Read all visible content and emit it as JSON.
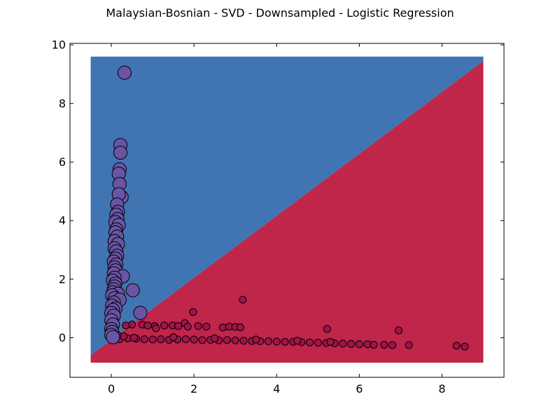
{
  "chart_data": {
    "type": "scatter",
    "title": "Malaysian-Bosnian - SVD - Downsampled - Logistic Regression",
    "xlabel": "",
    "ylabel": "",
    "xlim": [
      -1,
      9.5
    ],
    "ylim": [
      -1.35,
      10.05
    ],
    "xticks": [
      0,
      2,
      4,
      6,
      8
    ],
    "yticks": [
      0,
      2,
      4,
      6,
      8,
      10
    ],
    "grid": false,
    "legend": "none",
    "decision_regions": {
      "extent_x": [
        -0.5,
        9.0
      ],
      "extent_y": [
        -0.85,
        9.6
      ],
      "boundary": [
        [
          -0.5,
          -0.6
        ],
        [
          9.0,
          9.45
        ]
      ],
      "upper_region_color": "#4174b3",
      "lower_region_color": "#c0254a"
    },
    "series": [
      {
        "class": "upper",
        "color": "#6a54a6",
        "marker_size": "large",
        "points": [
          [
            0.32,
            9.05
          ],
          [
            0.22,
            6.58
          ],
          [
            0.22,
            6.32
          ],
          [
            0.2,
            5.75
          ],
          [
            0.18,
            5.6
          ],
          [
            0.2,
            5.25
          ],
          [
            0.25,
            4.8
          ],
          [
            0.18,
            4.9
          ],
          [
            0.14,
            4.55
          ],
          [
            0.16,
            4.3
          ],
          [
            0.12,
            4.2
          ],
          [
            0.15,
            4.05
          ],
          [
            0.1,
            3.95
          ],
          [
            0.18,
            3.85
          ],
          [
            0.12,
            3.7
          ],
          [
            0.1,
            3.6
          ],
          [
            0.14,
            3.45
          ],
          [
            0.08,
            3.3
          ],
          [
            0.16,
            3.2
          ],
          [
            0.08,
            3.05
          ],
          [
            0.12,
            2.95
          ],
          [
            0.14,
            2.8
          ],
          [
            0.1,
            2.7
          ],
          [
            0.06,
            2.6
          ],
          [
            0.12,
            2.5
          ],
          [
            0.08,
            2.4
          ],
          [
            0.1,
            2.3
          ],
          [
            0.06,
            2.2
          ],
          [
            0.28,
            2.1
          ],
          [
            0.08,
            2.05
          ],
          [
            0.04,
            1.95
          ],
          [
            0.1,
            1.85
          ],
          [
            0.08,
            1.75
          ],
          [
            0.06,
            1.65
          ],
          [
            0.52,
            1.62
          ],
          [
            0.04,
            1.55
          ],
          [
            0.16,
            1.5
          ],
          [
            0.02,
            1.45
          ],
          [
            0.08,
            1.35
          ],
          [
            0.2,
            1.3
          ],
          [
            0.06,
            1.2
          ],
          [
            0.02,
            1.1
          ],
          [
            0.1,
            1.0
          ],
          [
            0.04,
            0.95
          ],
          [
            0.0,
            0.85
          ],
          [
            0.7,
            0.85
          ],
          [
            0.06,
            0.75
          ],
          [
            0.0,
            0.6
          ],
          [
            0.04,
            0.45
          ],
          [
            0.0,
            0.3
          ],
          [
            0.02,
            0.2
          ],
          [
            0.0,
            0.1
          ],
          [
            0.04,
            0.02
          ]
        ]
      },
      {
        "class": "lower",
        "color": "#a0144a",
        "marker_size": "small",
        "points": [
          [
            1.98,
            0.88
          ],
          [
            3.18,
            1.3
          ],
          [
            5.22,
            0.3
          ],
          [
            6.95,
            0.25
          ],
          [
            7.2,
            -0.25
          ],
          [
            8.35,
            -0.27
          ],
          [
            8.55,
            -0.3
          ],
          [
            1.78,
            0.5
          ],
          [
            0.5,
            0.45
          ],
          [
            0.75,
            0.45
          ],
          [
            0.88,
            0.42
          ],
          [
            1.05,
            0.4
          ],
          [
            1.28,
            0.42
          ],
          [
            1.48,
            0.42
          ],
          [
            1.62,
            0.4
          ],
          [
            1.85,
            0.38
          ],
          [
            2.1,
            0.4
          ],
          [
            2.3,
            0.38
          ],
          [
            2.7,
            0.35
          ],
          [
            2.85,
            0.38
          ],
          [
            3.0,
            0.37
          ],
          [
            3.12,
            0.36
          ],
          [
            0.35,
            0.42
          ],
          [
            1.08,
            0.32
          ],
          [
            0.2,
            -0.05
          ],
          [
            0.4,
            -0.02
          ],
          [
            0.6,
            -0.03
          ],
          [
            0.8,
            -0.05
          ],
          [
            1.0,
            -0.06
          ],
          [
            1.2,
            -0.05
          ],
          [
            1.4,
            -0.07
          ],
          [
            1.6,
            -0.06
          ],
          [
            1.8,
            -0.05
          ],
          [
            2.0,
            -0.06
          ],
          [
            2.2,
            -0.08
          ],
          [
            2.4,
            -0.07
          ],
          [
            2.6,
            -0.09
          ],
          [
            2.8,
            -0.08
          ],
          [
            3.0,
            -0.09
          ],
          [
            3.2,
            -0.1
          ],
          [
            3.4,
            -0.11
          ],
          [
            3.6,
            -0.12
          ],
          [
            3.8,
            -0.12
          ],
          [
            4.0,
            -0.13
          ],
          [
            4.2,
            -0.14
          ],
          [
            4.4,
            -0.14
          ],
          [
            4.6,
            -0.15
          ],
          [
            4.8,
            -0.16
          ],
          [
            5.0,
            -0.17
          ],
          [
            5.2,
            -0.18
          ],
          [
            5.4,
            -0.19
          ],
          [
            5.6,
            -0.2
          ],
          [
            5.8,
            -0.21
          ],
          [
            6.0,
            -0.22
          ],
          [
            6.2,
            -0.22
          ],
          [
            6.35,
            -0.24
          ],
          [
            6.6,
            -0.24
          ],
          [
            6.8,
            -0.25
          ],
          [
            0.3,
            0.05
          ],
          [
            0.55,
            0.0
          ],
          [
            1.5,
            0.02
          ],
          [
            2.5,
            -0.02
          ],
          [
            3.5,
            -0.06
          ],
          [
            4.5,
            -0.1
          ],
          [
            5.3,
            -0.14
          ],
          [
            0.15,
            0.1
          ]
        ]
      }
    ]
  }
}
